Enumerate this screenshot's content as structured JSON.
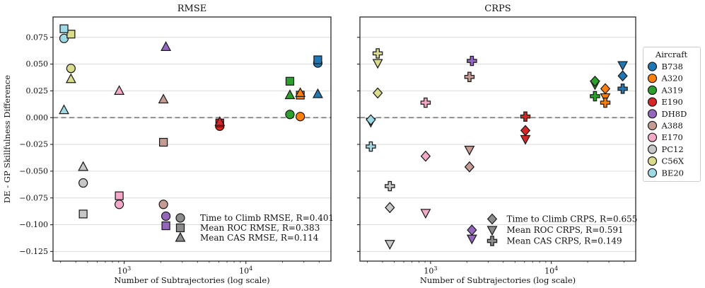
{
  "aircraft_legend": {
    "title": "Aircraft",
    "items": [
      {
        "label": "B738",
        "color": "#1f77b4"
      },
      {
        "label": "A320",
        "color": "#ff7f0e"
      },
      {
        "label": "A319",
        "color": "#2ca02c"
      },
      {
        "label": "E190",
        "color": "#d62728"
      },
      {
        "label": "DH8D",
        "color": "#9467bd"
      },
      {
        "label": "A388",
        "color": "#c49c94"
      },
      {
        "label": "E170",
        "color": "#f5a9c9"
      },
      {
        "label": "PC12",
        "color": "#c7c7c7"
      },
      {
        "label": "C56X",
        "color": "#dbdb8d"
      },
      {
        "label": "BE20",
        "color": "#9edae5"
      }
    ]
  },
  "style_colors": {
    "grid": "#dcdcdc",
    "zero_line": "#7f7f7f",
    "spine": "#262626",
    "marker_edge": "#1a1a1a",
    "legend_marker_fill": "#8c8c8c",
    "legend_frame": "#cccccc"
  },
  "chart_data": [
    {
      "type": "scatter",
      "title": "RMSE",
      "xlabel": "Number of Subtrajectories (log scale)",
      "ylabel": "DE - GP Skillfulness Difference",
      "xscale": "log",
      "xlim": [
        260,
        50000
      ],
      "ylim": [
        -0.134,
        0.094
      ],
      "grid": "horizontal",
      "zero_line_y": 0,
      "show_ytick_labels": true,
      "xticks": [
        {
          "value": 1000,
          "base": "10",
          "exp": "3"
        },
        {
          "value": 10000,
          "base": "10",
          "exp": "4"
        }
      ],
      "yticks": [
        {
          "value": 0.075,
          "label": "0.075"
        },
        {
          "value": 0.05,
          "label": "0.050"
        },
        {
          "value": 0.025,
          "label": "0.025"
        },
        {
          "value": 0.0,
          "label": "0.000"
        },
        {
          "value": -0.025,
          "label": "−0.025"
        },
        {
          "value": -0.05,
          "label": "−0.050"
        },
        {
          "value": -0.075,
          "label": "−0.075"
        },
        {
          "value": -0.1,
          "label": "−0.100"
        },
        {
          "value": -0.125,
          "label": "−0.125"
        }
      ],
      "legend": {
        "position": "lower right",
        "entries": [
          {
            "label": "Time to Climb RMSE, R=0.401",
            "marker": "circle"
          },
          {
            "label": "Mean ROC RMSE, R=0.383",
            "marker": "square"
          },
          {
            "label": "Mean CAS RMSE, R=0.114",
            "marker": "triangle-up"
          }
        ]
      },
      "series": [
        {
          "name": "Time to Climb RMSE, R=0.401",
          "marker": "circle",
          "points": [
            [
              "B738",
              39000,
              0.051
            ],
            [
              "A320",
              28000,
              0.001
            ],
            [
              "A319",
              23000,
              0.003
            ],
            [
              "E190",
              6100,
              -0.008
            ],
            [
              "DH8D",
              2200,
              -0.092
            ],
            [
              "A388",
              2100,
              -0.081
            ],
            [
              "E170",
              910,
              -0.081
            ],
            [
              "PC12",
              460,
              -0.061
            ],
            [
              "C56X",
              365,
              0.046
            ],
            [
              "BE20",
              320,
              0.074
            ]
          ]
        },
        {
          "name": "Mean ROC RMSE, R=0.383",
          "marker": "square",
          "points": [
            [
              "B738",
              39000,
              0.054
            ],
            [
              "A320",
              28000,
              0.021
            ],
            [
              "A319",
              23000,
              0.034
            ],
            [
              "E190",
              6100,
              -0.005
            ],
            [
              "DH8D",
              2200,
              -0.101
            ],
            [
              "A388",
              2100,
              -0.023
            ],
            [
              "E170",
              910,
              -0.073
            ],
            [
              "PC12",
              460,
              -0.09
            ],
            [
              "C56X",
              365,
              0.078
            ],
            [
              "BE20",
              320,
              0.083
            ]
          ]
        },
        {
          "name": "Mean CAS RMSE, R=0.114",
          "marker": "triangle-up",
          "points": [
            [
              "B738",
              39000,
              0.022
            ],
            [
              "A320",
              28000,
              0.023
            ],
            [
              "A319",
              23000,
              0.021
            ],
            [
              "E190",
              6100,
              -0.004
            ],
            [
              "DH8D",
              2200,
              0.066
            ],
            [
              "A388",
              2100,
              0.017
            ],
            [
              "E170",
              910,
              0.025
            ],
            [
              "PC12",
              460,
              -0.046
            ],
            [
              "C56X",
              365,
              0.036
            ],
            [
              "BE20",
              320,
              0.007
            ]
          ]
        }
      ]
    },
    {
      "type": "scatter",
      "title": "CRPS",
      "xlabel": "Number of Subtrajectories (log scale)",
      "ylabel": "DE - GP Skillfulness Difference",
      "xscale": "log",
      "xlim": [
        260,
        50000
      ],
      "ylim": [
        -0.134,
        0.094
      ],
      "grid": "horizontal",
      "zero_line_y": 0,
      "show_ytick_labels": false,
      "xticks": [
        {
          "value": 1000,
          "base": "10",
          "exp": "3"
        },
        {
          "value": 10000,
          "base": "10",
          "exp": "4"
        }
      ],
      "yticks": [
        {
          "value": 0.075,
          "label": "0.075"
        },
        {
          "value": 0.05,
          "label": "0.050"
        },
        {
          "value": 0.025,
          "label": "0.025"
        },
        {
          "value": 0.0,
          "label": "0.000"
        },
        {
          "value": -0.025,
          "label": "−0.025"
        },
        {
          "value": -0.05,
          "label": "−0.050"
        },
        {
          "value": -0.075,
          "label": "−0.075"
        },
        {
          "value": -0.1,
          "label": "−0.100"
        },
        {
          "value": -0.125,
          "label": "−0.125"
        }
      ],
      "legend": {
        "position": "lower right",
        "entries": [
          {
            "label": "Time to Climb CRPS, R=0.655",
            "marker": "diamond"
          },
          {
            "label": "Mean ROC CRPS, R=0.591",
            "marker": "triangle-down"
          },
          {
            "label": "Mean CAS CRPS, R=0.149",
            "marker": "plus"
          }
        ]
      },
      "series": [
        {
          "name": "Time to Climb CRPS, R=0.655",
          "marker": "diamond",
          "points": [
            [
              "B738",
              39000,
              0.039
            ],
            [
              "A320",
              28000,
              0.027
            ],
            [
              "A319",
              23000,
              0.034
            ],
            [
              "E190",
              6100,
              -0.012
            ],
            [
              "DH8D",
              2200,
              -0.105
            ],
            [
              "A388",
              2100,
              -0.046
            ],
            [
              "E170",
              910,
              -0.036
            ],
            [
              "PC12",
              460,
              -0.084
            ],
            [
              "C56X",
              365,
              0.023
            ],
            [
              "BE20",
              320,
              -0.002
            ]
          ]
        },
        {
          "name": "Mean ROC CRPS, R=0.591",
          "marker": "triangle-down",
          "points": [
            [
              "B738",
              39000,
              0.049
            ],
            [
              "A320",
              28000,
              0.019
            ],
            [
              "A319",
              23000,
              0.031
            ],
            [
              "E190",
              6100,
              -0.02
            ],
            [
              "DH8D",
              2200,
              -0.113
            ],
            [
              "A388",
              2100,
              -0.03
            ],
            [
              "E170",
              910,
              -0.089
            ],
            [
              "PC12",
              460,
              -0.118
            ],
            [
              "C56X",
              365,
              0.051
            ],
            [
              "BE20",
              320,
              -0.004
            ]
          ]
        },
        {
          "name": "Mean CAS CRPS, R=0.149",
          "marker": "plus",
          "points": [
            [
              "B738",
              39000,
              0.027
            ],
            [
              "A320",
              28000,
              0.014
            ],
            [
              "A319",
              23000,
              0.02
            ],
            [
              "E190",
              6100,
              0.001
            ],
            [
              "DH8D",
              2200,
              0.053
            ],
            [
              "A388",
              2100,
              0.038
            ],
            [
              "E170",
              910,
              0.014
            ],
            [
              "PC12",
              460,
              -0.064
            ],
            [
              "C56X",
              365,
              0.06
            ],
            [
              "BE20",
              320,
              -0.027
            ]
          ]
        }
      ]
    }
  ]
}
